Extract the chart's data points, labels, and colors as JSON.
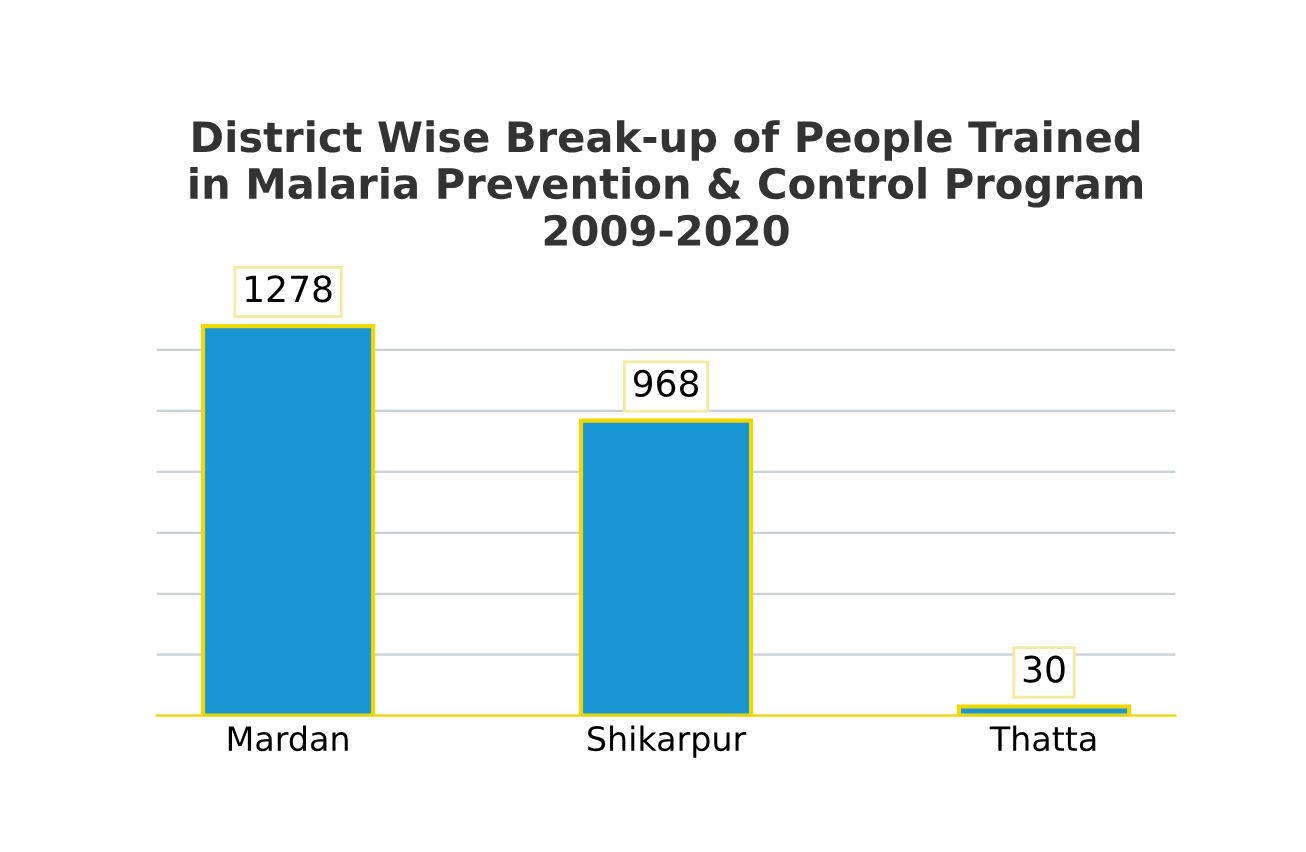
{
  "chart_data": {
    "type": "bar",
    "title": "District Wise Break-up of People Trained\nin Malaria Prevention & Control Program\n2009-2020",
    "categories": [
      "Mardan",
      "Shikarpur",
      "Thatta"
    ],
    "values": [
      1278,
      968,
      30
    ],
    "color": "#1b96d4",
    "data_labels": true,
    "grid": "y",
    "tick_labels": "x"
  }
}
